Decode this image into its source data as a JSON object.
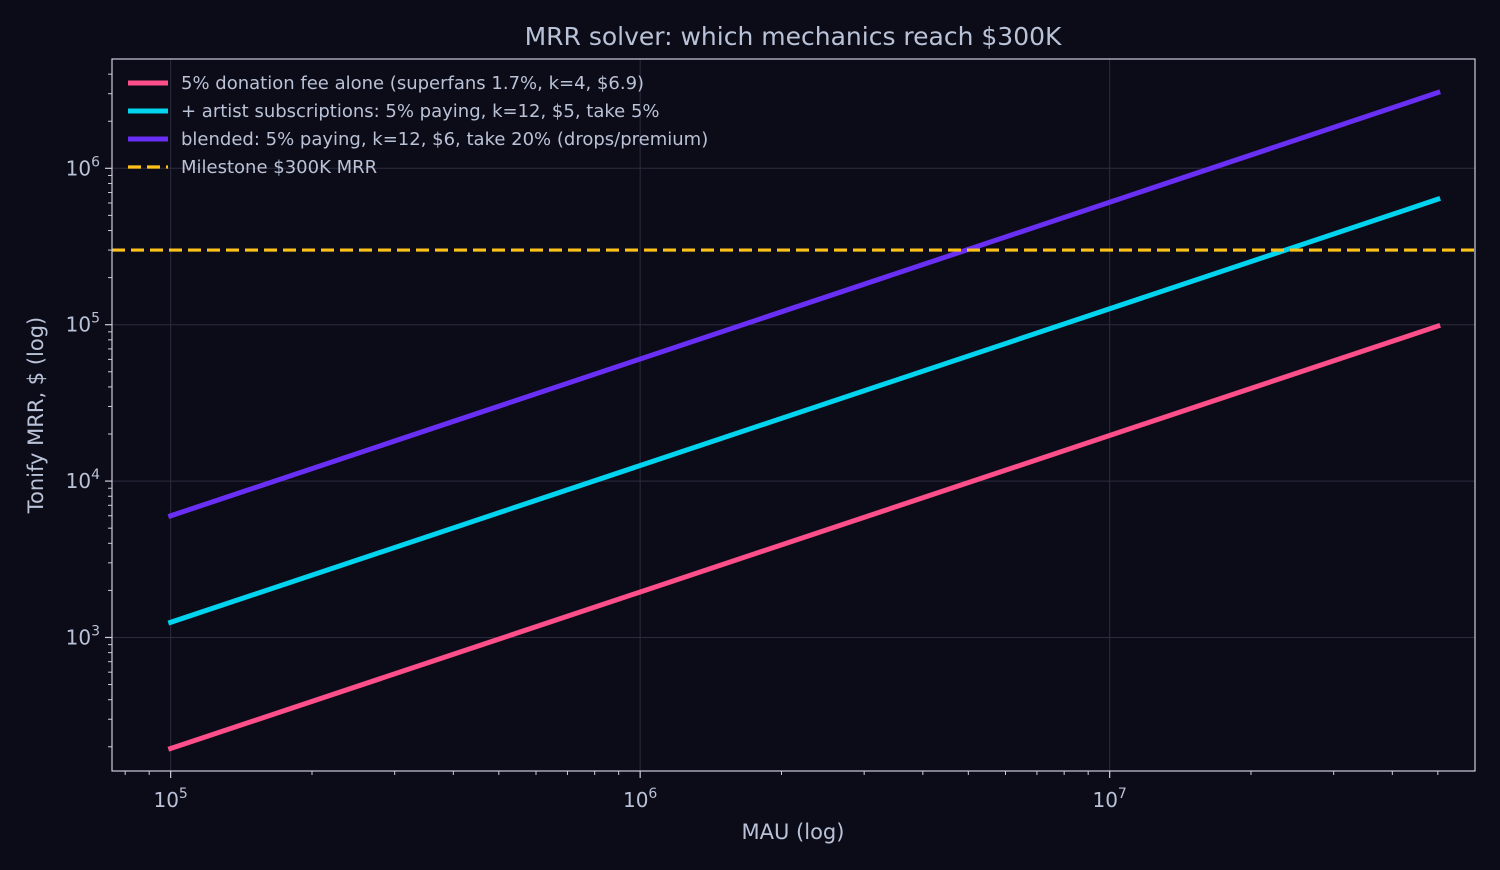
{
  "chart_data": {
    "type": "line",
    "title": "MRR solver: which mechanics reach $300K",
    "xlabel": "MAU (log)",
    "ylabel": "Tonify MRR, $ (log)",
    "xscale": "log",
    "yscale": "log",
    "xlim": [
      75000,
      60000000
    ],
    "ylim": [
      140,
      5000000
    ],
    "grid": true,
    "legend_position": "top-left",
    "x_ticks": [
      {
        "value": 100000,
        "base": "10",
        "exp": "5"
      },
      {
        "value": 1000000,
        "base": "10",
        "exp": "6"
      },
      {
        "value": 10000000,
        "base": "10",
        "exp": "7"
      }
    ],
    "y_ticks": [
      {
        "value": 1000,
        "base": "10",
        "exp": "3"
      },
      {
        "value": 10000,
        "base": "10",
        "exp": "4"
      },
      {
        "value": 100000,
        "base": "10",
        "exp": "5"
      },
      {
        "value": 1000000,
        "base": "10",
        "exp": "6"
      }
    ],
    "series": [
      {
        "name": "5% donation fee alone (superfans 1.7%, k=4, $6.9)",
        "color": "#ff4f8b",
        "style": "solid",
        "x": [
          100000,
          50000000
        ],
        "y": [
          195,
          98000
        ]
      },
      {
        "name": "+ artist subscriptions: 5% paying, k=12, $5, take 5%",
        "color": "#00d4ee",
        "style": "solid",
        "x": [
          100000,
          50000000
        ],
        "y": [
          1250,
          635000
        ]
      },
      {
        "name": "blended: 5% paying, k=12, $6, take 20% (drops/premium)",
        "color": "#6a2ff5",
        "style": "solid",
        "x": [
          100000,
          50000000
        ],
        "y": [
          6000,
          3050000
        ]
      },
      {
        "name": "Milestone $300K MRR",
        "color": "#ffc21a",
        "style": "dashed",
        "hline": 300000
      }
    ]
  }
}
